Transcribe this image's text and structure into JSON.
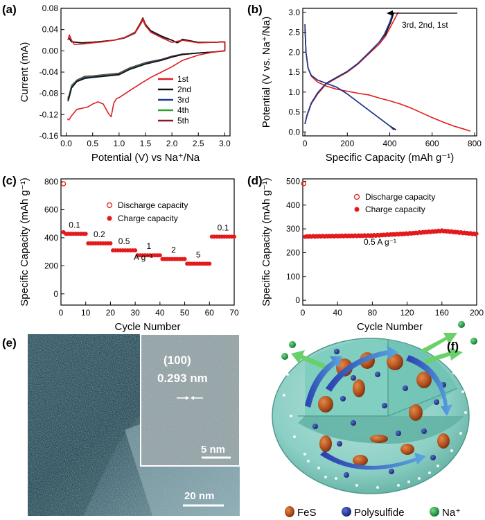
{
  "panels": {
    "a": "(a)",
    "b": "(b)",
    "c": "(c)",
    "d": "(d)",
    "e": "(e)",
    "f": "(f)"
  },
  "chart_data": [
    {
      "id": "a",
      "type": "line",
      "title": "",
      "xlabel": "Potential (V) vs Na⁺/Na",
      "ylabel": "Current (mA)",
      "xlim": [
        -0.1,
        3.1
      ],
      "ylim": [
        -0.16,
        0.08
      ],
      "xticks": [
        "0.0",
        "0.5",
        "1.0",
        "1.5",
        "2.0",
        "2.5",
        "3.0"
      ],
      "yticks": [
        "0.08",
        "0.04",
        "0.00",
        "-0.04",
        "-0.08",
        "-0.12",
        "-0.16"
      ],
      "legend_position": "bottom-right",
      "series": [
        {
          "name": "1st",
          "color": "#e31a1c",
          "x": [
            0.02,
            0.05,
            0.1,
            0.2,
            0.3,
            0.4,
            0.5,
            0.6,
            0.7,
            0.8,
            0.85,
            0.9,
            0.95,
            1.0,
            1.2,
            1.4,
            1.6,
            1.8,
            2.0,
            2.2,
            2.5,
            2.8,
            3.0,
            3.0,
            2.8,
            2.5,
            2.2,
            2.0,
            1.8,
            1.6,
            1.5,
            1.45,
            1.4,
            1.3,
            1.1,
            0.9,
            0.7,
            0.5,
            0.3,
            0.15,
            0.1,
            0.06,
            0.03
          ],
          "y": [
            -0.128,
            -0.13,
            -0.122,
            -0.11,
            -0.108,
            -0.106,
            -0.1,
            -0.096,
            -0.1,
            -0.118,
            -0.124,
            -0.098,
            -0.09,
            -0.088,
            -0.075,
            -0.062,
            -0.05,
            -0.04,
            -0.03,
            -0.018,
            -0.008,
            -0.002,
            0.0,
            0.017,
            0.016,
            0.015,
            0.02,
            0.016,
            0.025,
            0.035,
            0.048,
            0.06,
            0.05,
            0.035,
            0.025,
            0.02,
            0.017,
            0.015,
            0.013,
            0.012,
            0.02,
            0.03,
            0.02
          ]
        },
        {
          "name": "2nd",
          "color": "#111111",
          "x": [
            0.03,
            0.05,
            0.1,
            0.2,
            0.35,
            0.5,
            0.8,
            1.0,
            1.2,
            1.5,
            1.8,
            2.0,
            2.2,
            2.5,
            2.8,
            3.0,
            3.0,
            2.8,
            2.5,
            2.2,
            2.1,
            2.0,
            1.8,
            1.6,
            1.5,
            1.45,
            1.4,
            1.3,
            1.1,
            0.9,
            0.6,
            0.3,
            0.1,
            0.05
          ],
          "y": [
            -0.095,
            -0.09,
            -0.07,
            -0.058,
            -0.052,
            -0.05,
            -0.047,
            -0.045,
            -0.035,
            -0.025,
            -0.018,
            -0.012,
            -0.007,
            -0.004,
            -0.002,
            0.0,
            0.017,
            0.016,
            0.016,
            0.022,
            0.015,
            0.02,
            0.028,
            0.038,
            0.05,
            0.062,
            0.052,
            0.035,
            0.025,
            0.02,
            0.017,
            0.015,
            0.017,
            0.025
          ]
        },
        {
          "name": "3rd",
          "color": "#1f3a93",
          "x": [
            0.03,
            0.05,
            0.1,
            0.2,
            0.35,
            0.5,
            0.8,
            1.0,
            1.2,
            1.5,
            1.8,
            2.0,
            2.2,
            2.5,
            2.8,
            3.0,
            3.0,
            2.8,
            2.5,
            2.2,
            2.1,
            2.0,
            1.8,
            1.6,
            1.5,
            1.45,
            1.4,
            1.3,
            1.1,
            0.9,
            0.6,
            0.3,
            0.1,
            0.05
          ],
          "y": [
            -0.092,
            -0.088,
            -0.068,
            -0.057,
            -0.05,
            -0.049,
            -0.046,
            -0.044,
            -0.034,
            -0.024,
            -0.017,
            -0.011,
            -0.007,
            -0.004,
            -0.002,
            0.0,
            0.017,
            0.016,
            0.016,
            0.021,
            0.015,
            0.02,
            0.027,
            0.037,
            0.049,
            0.061,
            0.051,
            0.034,
            0.024,
            0.02,
            0.017,
            0.015,
            0.017,
            0.024
          ]
        },
        {
          "name": "4th",
          "color": "#2ca02c",
          "x": [
            0.03,
            0.05,
            0.1,
            0.2,
            0.35,
            0.5,
            0.8,
            1.0,
            1.2,
            1.5,
            1.8,
            2.0,
            2.2,
            2.5,
            2.8,
            3.0,
            3.0,
            2.8,
            2.5,
            2.2,
            2.1,
            2.0,
            1.8,
            1.6,
            1.5,
            1.45,
            1.4,
            1.3,
            1.1,
            0.9,
            0.6,
            0.3,
            0.1,
            0.05
          ],
          "y": [
            -0.09,
            -0.086,
            -0.066,
            -0.056,
            -0.049,
            -0.048,
            -0.045,
            -0.043,
            -0.033,
            -0.023,
            -0.017,
            -0.011,
            -0.007,
            -0.004,
            -0.002,
            0.0,
            0.017,
            0.016,
            0.016,
            0.021,
            0.015,
            0.02,
            0.027,
            0.037,
            0.048,
            0.06,
            0.05,
            0.034,
            0.024,
            0.02,
            0.017,
            0.015,
            0.017,
            0.024
          ]
        },
        {
          "name": "5th",
          "color": "#8b1a1a",
          "x": [
            0.03,
            0.05,
            0.1,
            0.2,
            0.35,
            0.5,
            0.8,
            1.0,
            1.2,
            1.5,
            1.8,
            2.0,
            2.2,
            2.5,
            2.8,
            3.0,
            3.0,
            2.8,
            2.5,
            2.2,
            2.1,
            2.0,
            1.8,
            1.6,
            1.5,
            1.45,
            1.4,
            1.3,
            1.1,
            0.9,
            0.6,
            0.3,
            0.1,
            0.05
          ],
          "y": [
            -0.088,
            -0.085,
            -0.065,
            -0.055,
            -0.048,
            -0.047,
            -0.044,
            -0.042,
            -0.032,
            -0.022,
            -0.016,
            -0.01,
            -0.006,
            -0.004,
            -0.002,
            0.0,
            0.017,
            0.016,
            0.016,
            0.02,
            0.015,
            0.02,
            0.026,
            0.036,
            0.047,
            0.058,
            0.049,
            0.033,
            0.024,
            0.02,
            0.017,
            0.015,
            0.017,
            0.024
          ]
        }
      ]
    },
    {
      "id": "b",
      "type": "line",
      "title": "",
      "xlabel": "Specific Capacity (mAh g⁻¹)",
      "ylabel": "Potential (V vs. Na⁺/Na)",
      "xlim": [
        -10,
        810
      ],
      "ylim": [
        -0.1,
        3.1
      ],
      "xticks": [
        "0",
        "200",
        "400",
        "600",
        "800"
      ],
      "yticks": [
        "0.0",
        "0.5",
        "1.0",
        "1.5",
        "2.0",
        "2.5",
        "3.0"
      ],
      "annotation": "3rd, 2nd, 1st",
      "series": [
        {
          "name": "1st discharge",
          "color": "#e31a1c",
          "x": [
            0,
            5,
            15,
            30,
            60,
            100,
            150,
            200,
            250,
            300,
            350,
            400,
            450,
            500,
            550,
            600,
            650,
            700,
            750,
            780
          ],
          "y": [
            2.6,
            2.0,
            1.6,
            1.4,
            1.25,
            1.15,
            1.07,
            1.02,
            0.97,
            0.93,
            0.85,
            0.78,
            0.7,
            0.6,
            0.48,
            0.36,
            0.25,
            0.15,
            0.07,
            0.02
          ]
        },
        {
          "name": "1st charge",
          "color": "#e31a1c",
          "x": [
            0,
            10,
            30,
            60,
            100,
            150,
            200,
            250,
            300,
            350,
            380,
            410,
            430,
            440
          ],
          "y": [
            0.2,
            0.4,
            0.7,
            0.95,
            1.2,
            1.35,
            1.5,
            1.7,
            1.95,
            2.2,
            2.4,
            2.7,
            2.9,
            3.0
          ]
        },
        {
          "name": "2nd discharge",
          "color": "#111111",
          "x": [
            0,
            5,
            15,
            30,
            60,
            100,
            150,
            200,
            250,
            300,
            350,
            400,
            430
          ],
          "y": [
            2.7,
            2.0,
            1.6,
            1.42,
            1.3,
            1.22,
            1.12,
            0.95,
            0.75,
            0.55,
            0.35,
            0.15,
            0.05
          ]
        },
        {
          "name": "2nd charge",
          "color": "#111111",
          "x": [
            0,
            10,
            30,
            60,
            100,
            150,
            200,
            250,
            300,
            350,
            380,
            405,
            420
          ],
          "y": [
            0.2,
            0.42,
            0.72,
            0.98,
            1.22,
            1.37,
            1.52,
            1.72,
            1.98,
            2.25,
            2.45,
            2.75,
            3.0
          ]
        },
        {
          "name": "3rd discharge",
          "color": "#1f3a93",
          "x": [
            0,
            5,
            15,
            30,
            60,
            100,
            150,
            200,
            250,
            300,
            350,
            400,
            420
          ],
          "y": [
            2.7,
            2.0,
            1.6,
            1.42,
            1.3,
            1.22,
            1.12,
            0.95,
            0.75,
            0.55,
            0.35,
            0.15,
            0.05
          ]
        },
        {
          "name": "3rd charge",
          "color": "#1f3a93",
          "x": [
            0,
            10,
            30,
            60,
            100,
            150,
            200,
            250,
            300,
            350,
            375,
            400,
            415
          ],
          "y": [
            0.2,
            0.42,
            0.72,
            0.98,
            1.22,
            1.37,
            1.52,
            1.72,
            1.98,
            2.25,
            2.45,
            2.75,
            3.0
          ]
        }
      ]
    },
    {
      "id": "c",
      "type": "scatter",
      "title": "",
      "xlabel": "Cycle Number",
      "ylabel": "Specific Capacity (mAh g⁻¹)",
      "xlim": [
        0,
        70
      ],
      "ylim": [
        -80,
        820
      ],
      "xticks": [
        "0",
        "10",
        "20",
        "30",
        "40",
        "50",
        "60",
        "70"
      ],
      "yticks": [
        "800",
        "600",
        "400",
        "200",
        "0"
      ],
      "legend_position": "top-right",
      "legend": [
        "Discharge capacity",
        "Charge capacity"
      ],
      "rate_labels": [
        "0.1",
        "0.2",
        "0.5",
        "1",
        "2",
        "5",
        "0.1"
      ],
      "unit_label": "A g⁻¹",
      "series": [
        {
          "name": "Discharge capacity",
          "color": "#e31a1c",
          "marker": "open-circle",
          "x": [
            1
          ],
          "y": [
            785
          ]
        },
        {
          "name": "Charge capacity",
          "color": "#e31a1c",
          "marker": "filled-circle",
          "segments": [
            {
              "x_start": 1,
              "x_end": 10,
              "y": 428
            },
            {
              "x_start": 11,
              "x_end": 20,
              "y": 360
            },
            {
              "x_start": 21,
              "x_end": 30,
              "y": 310
            },
            {
              "x_start": 31,
              "x_end": 40,
              "y": 275
            },
            {
              "x_start": 41,
              "x_end": 50,
              "y": 248
            },
            {
              "x_start": 51,
              "x_end": 60,
              "y": 215
            },
            {
              "x_start": 61,
              "x_end": 70,
              "y": 408
            }
          ]
        }
      ]
    },
    {
      "id": "d",
      "type": "scatter",
      "title": "",
      "xlabel": "Cycle Number",
      "ylabel": "Specific Capacity (mAh g⁻¹)",
      "xlim": [
        0,
        200
      ],
      "ylim": [
        -20,
        510
      ],
      "xticks": [
        "0",
        "40",
        "80",
        "120",
        "160",
        "200"
      ],
      "yticks": [
        "500",
        "400",
        "300",
        "200",
        "100",
        "0"
      ],
      "legend_position": "top",
      "legend": [
        "Discharge capacity",
        "Charge capacity"
      ],
      "annotation": "0.5 A g⁻¹",
      "series": [
        {
          "name": "Discharge capacity",
          "color": "#e31a1c",
          "marker": "open-circle",
          "x": [
            1
          ],
          "y": [
            490
          ]
        },
        {
          "name": "Charge capacity",
          "color": "#e31a1c",
          "marker": "filled-circle",
          "x_start": 2,
          "x_end": 200,
          "trend_x": [
            2,
            40,
            80,
            120,
            160,
            200
          ],
          "trend_y": [
            268,
            270,
            272,
            280,
            292,
            278
          ]
        }
      ]
    }
  ],
  "tem": {
    "scale_main": "20 nm",
    "inset_plane": "(100)",
    "inset_spacing": "0.293 nm",
    "inset_scale": "5 nm"
  },
  "schematic": {
    "legend": [
      {
        "label": "FeS",
        "color": "#b5531f"
      },
      {
        "label": "Polysulfide",
        "color": "#1f2f8a"
      },
      {
        "label": "Na⁺",
        "color": "#1a9a3a"
      }
    ]
  }
}
